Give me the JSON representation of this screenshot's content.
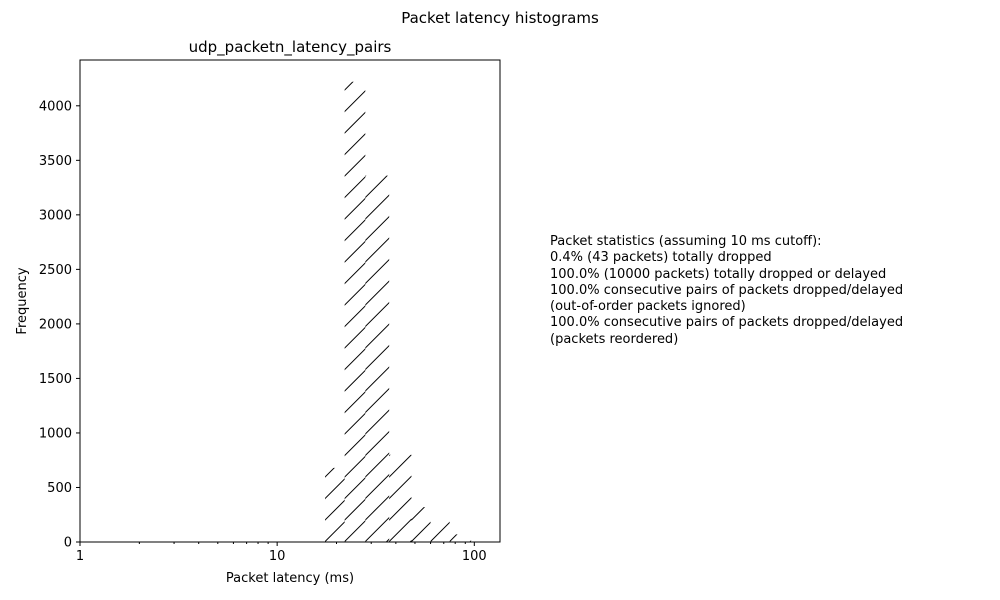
{
  "figure": {
    "suptitle": "Packet latency histograms"
  },
  "stats": {
    "heading": "Packet statistics (assuming 10 ms cutoff):",
    "lines": [
      "0.4% (43 packets) totally dropped",
      "100.0% (10000 packets) totally dropped or delayed",
      "100.0% consecutive pairs of packets dropped/delayed",
      "(out-of-order packets ignored)",
      "100.0% consecutive pairs of packets dropped/delayed",
      "(packets reordered)"
    ]
  },
  "colors": {
    "axes": "#000000",
    "hatch": "#000000",
    "background": "#ffffff"
  },
  "chart_data": {
    "type": "bar",
    "title": "udp_packetn_latency_pairs",
    "xlabel": "Packet latency (ms)",
    "ylabel": "Frequency",
    "xscale": "log",
    "xlim": [
      1,
      135
    ],
    "ylim": [
      0,
      4420
    ],
    "xticks": [
      1,
      10,
      100
    ],
    "xtick_labels": [
      "1",
      "10",
      "100"
    ],
    "yticks": [
      0,
      500,
      1000,
      1500,
      2000,
      2500,
      3000,
      3500,
      4000
    ],
    "ytick_labels": [
      "0",
      "500",
      "1000",
      "1500",
      "2000",
      "2500",
      "3000",
      "3500",
      "4000"
    ],
    "grid": false,
    "fill": "none",
    "hatch": "/",
    "bins": [
      {
        "x0": 17.5,
        "x1": 22.0,
        "count": 680
      },
      {
        "x0": 22.0,
        "x1": 28.0,
        "count": 4220
      },
      {
        "x0": 28.0,
        "x1": 37.0,
        "count": 3360
      },
      {
        "x0": 37.0,
        "x1": 48.0,
        "count": 800
      },
      {
        "x0": 48.0,
        "x1": 60.0,
        "count": 320
      },
      {
        "x0": 60.0,
        "x1": 75.0,
        "count": 190
      },
      {
        "x0": 75.0,
        "x1": 95.0,
        "count": 70
      },
      {
        "x0": 95.0,
        "x1": 120.0,
        "count": 12
      },
      {
        "x0": 120.0,
        "x1": 135.0,
        "count": 4
      }
    ]
  }
}
